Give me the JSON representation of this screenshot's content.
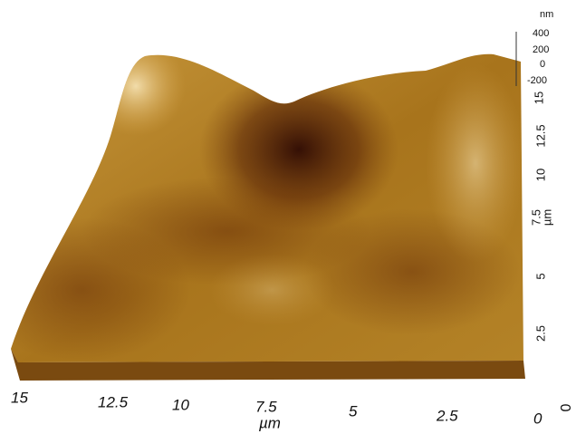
{
  "x_axis": {
    "ticks": [
      "15",
      "12.5",
      "10",
      "7.5",
      "5",
      "2.5",
      "0"
    ],
    "label": "µm"
  },
  "y_axis": {
    "ticks": [
      "0",
      "2.5",
      "5",
      "7.5",
      "10",
      "12.5",
      "15"
    ],
    "label": "µm"
  },
  "z_axis": {
    "unit": "nm",
    "ticks": [
      "400",
      "200",
      "0",
      "-200"
    ]
  }
}
